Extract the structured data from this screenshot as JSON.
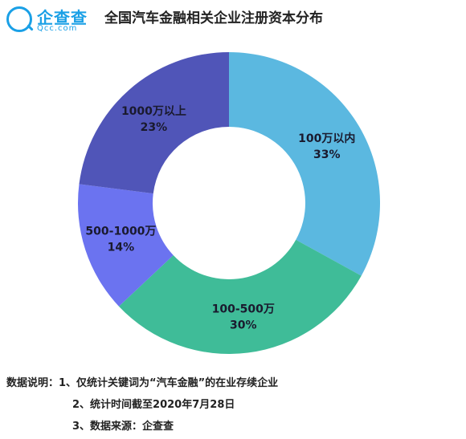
{
  "logo": {
    "name": "企查查",
    "domain": "Qcc.com"
  },
  "chart_data": {
    "type": "pie",
    "donut": true,
    "title": "全国汽车金融相关企业注册资本分布",
    "slices": [
      {
        "label": "100万以内",
        "percent_label": "33%",
        "value": 33,
        "color": "#5bb8e0"
      },
      {
        "label": "100-500万",
        "percent_label": "30%",
        "value": 30,
        "color": "#3fbc98"
      },
      {
        "label": "500-1000万",
        "percent_label": "14%",
        "value": 14,
        "color": "#6b73f0"
      },
      {
        "label": "1000万以上",
        "percent_label": "23%",
        "value": 23,
        "color": "#5055b8"
      }
    ]
  },
  "notes": {
    "heading": "数据说明：",
    "items": [
      "1、仅统计关键词为“汽车金融”的在业存续企业",
      "2、统计时间截至2020年7月28日",
      "3、数据来源：企查查"
    ]
  }
}
